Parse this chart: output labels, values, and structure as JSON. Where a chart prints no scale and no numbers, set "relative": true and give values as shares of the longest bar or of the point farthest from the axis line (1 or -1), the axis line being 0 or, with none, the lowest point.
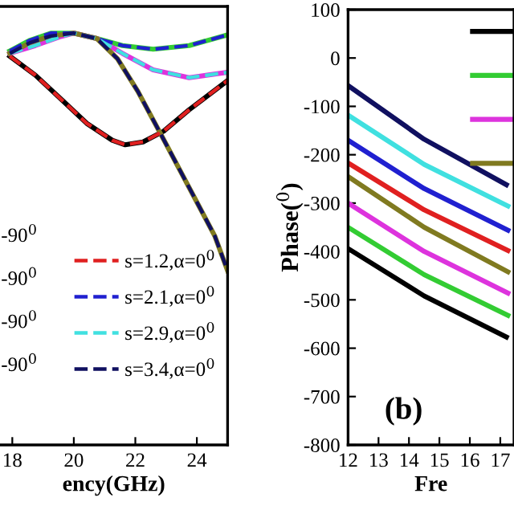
{
  "chart_data": [
    {
      "type": "line",
      "relative": true,
      "xlabel": "ency(GHz)",
      "xlim": [
        17.6,
        25
      ],
      "xticks": [
        18,
        20,
        22,
        24
      ],
      "tick_labels": "x",
      "legend": "bottom right",
      "line_style": "solid",
      "annotations": [
        "-90$^{0}$",
        "-90$^{0}$",
        "-90$^{0}$",
        "-90$^{0}$"
      ],
      "series": [
        {
          "color": "#000000",
          "x": [
            17.92,
            18.75,
            19.58,
            20.42,
            21.25,
            21.67,
            22.25,
            22.92,
            23.75,
            25
          ],
          "values": [
            0.944,
            0.898,
            0.84,
            0.781,
            0.74,
            0.729,
            0.736,
            0.762,
            0.814,
            0.885
          ]
        },
        {
          "color": "#33cc33",
          "x": [
            17.92,
            18.58,
            19.25,
            20,
            20.75,
            21.58,
            22.58,
            23.75,
            25
          ],
          "values": [
            0.957,
            0.983,
            1,
            1,
            0.987,
            0.97,
            0.961,
            0.97,
            0.996
          ]
        },
        {
          "color": "#dd33dd",
          "x": [
            17.92,
            18.75,
            19.58,
            20,
            20.75,
            21.58,
            22.58,
            23.75,
            25
          ],
          "values": [
            0.951,
            0.97,
            0.992,
            1,
            0.987,
            0.951,
            0.911,
            0.892,
            0.905
          ]
        },
        {
          "color": "#807a20",
          "x": [
            17.92,
            18.58,
            19.25,
            20,
            20.75,
            21.42,
            22.08,
            22.92,
            23.75,
            24.58,
            25
          ],
          "values": [
            0.951,
            0.977,
            0.993,
            1,
            0.987,
            0.938,
            0.859,
            0.742,
            0.625,
            0.508,
            0.423
          ]
        },
        {
          "name": "s=1.2,α=0$^{0}$",
          "color": "#e02020",
          "line_style": "dashed",
          "x": [
            17.92,
            18.75,
            19.58,
            20.42,
            21.25,
            21.67,
            22.25,
            22.92,
            23.75,
            25
          ],
          "values": [
            0.944,
            0.898,
            0.84,
            0.781,
            0.74,
            0.729,
            0.736,
            0.762,
            0.814,
            0.885
          ]
        },
        {
          "name": "s=2.1,α=0$^{0}$",
          "color": "#2020d0",
          "line_style": "dashed",
          "x": [
            17.92,
            18.58,
            19.25,
            20,
            20.75,
            21.58,
            22.58,
            23.75,
            25
          ],
          "values": [
            0.957,
            0.983,
            1,
            1,
            0.987,
            0.97,
            0.961,
            0.97,
            0.996
          ]
        },
        {
          "name": "s=2.9,α=0$^{0}$",
          "color": "#40e0e0",
          "line_style": "dashed",
          "x": [
            17.92,
            18.75,
            19.58,
            20,
            20.75,
            21.58,
            22.58,
            23.75,
            25
          ],
          "values": [
            0.951,
            0.97,
            0.992,
            1,
            0.987,
            0.951,
            0.911,
            0.892,
            0.905
          ]
        },
        {
          "name": "s=3.4,α=0$^{0}$",
          "color": "#101060",
          "line_style": "dashed",
          "x": [
            17.92,
            18.58,
            19.25,
            20,
            20.75,
            21.42,
            22.08,
            22.92,
            23.75,
            24.58,
            25
          ],
          "values": [
            0.951,
            0.977,
            0.993,
            1,
            0.987,
            0.938,
            0.859,
            0.742,
            0.625,
            0.508,
            0.423
          ]
        }
      ]
    },
    {
      "type": "line",
      "xlabel": "Fre",
      "ylabel": "Phase($^{0}$)",
      "xlim": [
        12,
        17.45
      ],
      "xticks": [
        12,
        13,
        14,
        15,
        16,
        17
      ],
      "ylim": [
        -800,
        100
      ],
      "yticks": [
        -800,
        -700,
        -600,
        -500,
        -400,
        -300,
        -200,
        -100,
        0,
        100
      ],
      "line_style": "solid",
      "annotations": [
        "(b)"
      ],
      "series": [
        {
          "color": "#101060",
          "x": [
            12,
            14.5,
            17.2
          ],
          "values": [
            -57,
            -168,
            -262
          ]
        },
        {
          "color": "#40e0e0",
          "x": [
            12,
            14.5,
            17.25
          ],
          "values": [
            -118,
            -220,
            -306
          ]
        },
        {
          "color": "#2020d0",
          "x": [
            12,
            14.5,
            17.25
          ],
          "values": [
            -170,
            -270,
            -356
          ]
        },
        {
          "color": "#e02020",
          "x": [
            12,
            14.5,
            17.25
          ],
          "values": [
            -217,
            -314,
            -398
          ]
        },
        {
          "color": "#807a20",
          "x": [
            12,
            14.5,
            17.25
          ],
          "values": [
            -245,
            -350,
            -442
          ]
        },
        {
          "color": "#dd33dd",
          "x": [
            12,
            14.5,
            17.25
          ],
          "values": [
            -300,
            -400,
            -486
          ]
        },
        {
          "color": "#33cc33",
          "x": [
            12,
            14.5,
            17.25
          ],
          "values": [
            -350,
            -448,
            -532
          ]
        },
        {
          "color": "#000000",
          "x": [
            12,
            14.5,
            17.2
          ],
          "values": [
            -394,
            -492,
            -577
          ]
        }
      ]
    }
  ]
}
